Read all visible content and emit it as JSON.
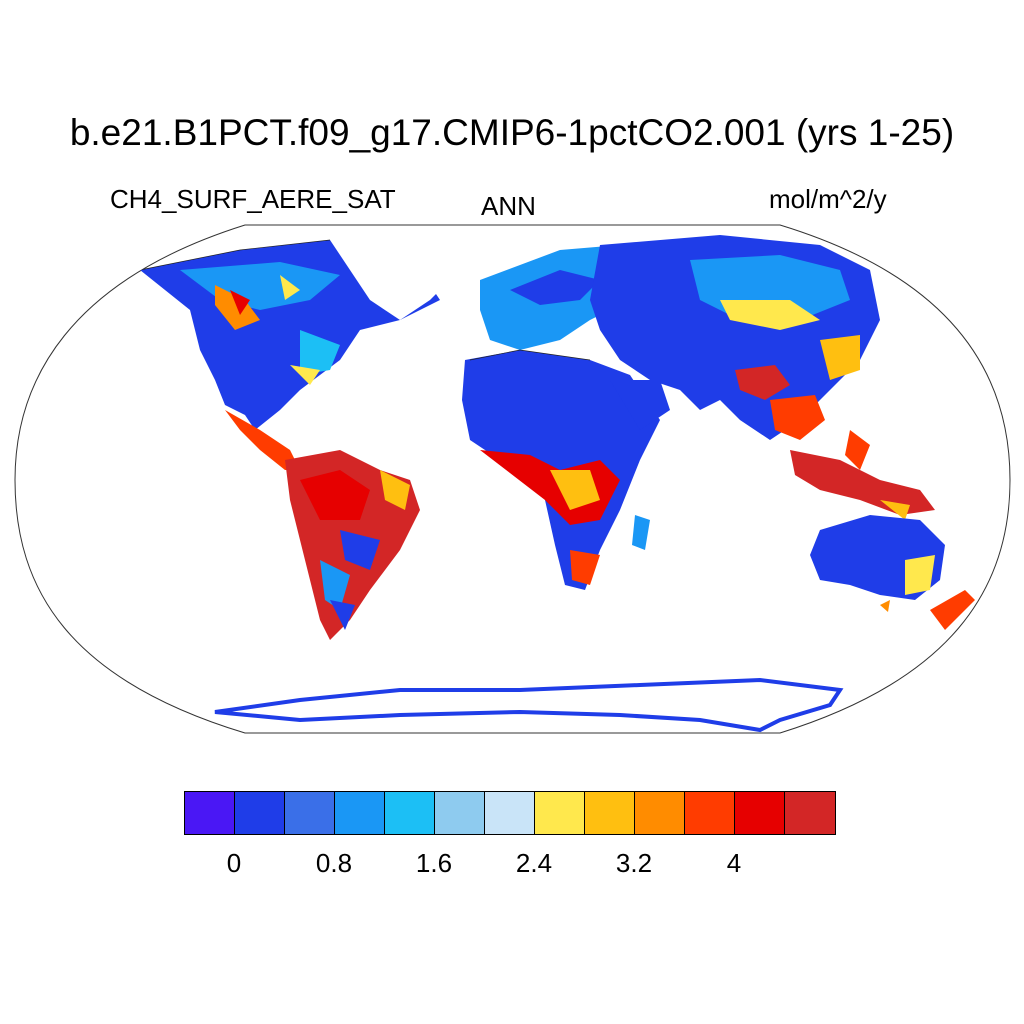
{
  "title": "b.e21.B1PCT.f09_g17.CMIP6-1pctCO2.001 (yrs 1-25)",
  "variable": "CH4_SURF_AERE_SAT",
  "season": "ANN",
  "units": "mol/m^2/y",
  "colorbar": {
    "colors": [
      "#4a17f5",
      "#1f3de8",
      "#3a6fe8",
      "#1a97f5",
      "#1cbff5",
      "#8ecbef",
      "#c9e4f8",
      "#ffe84d",
      "#ffbf10",
      "#ff8c00",
      "#ff3c00",
      "#e60000",
      "#d32626"
    ],
    "labels": [
      "0",
      "0.8",
      "1.6",
      "2.4",
      "3.2",
      "4"
    ]
  }
}
